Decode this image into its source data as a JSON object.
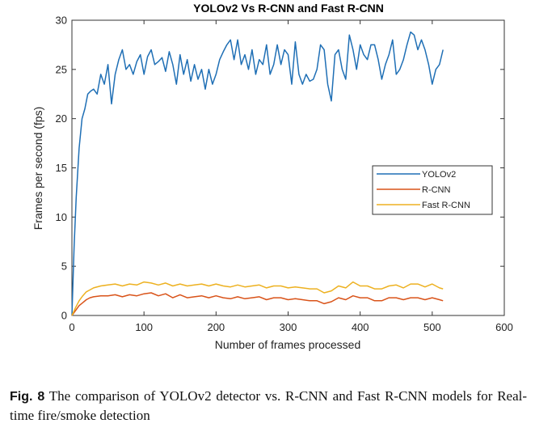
{
  "chart_data": {
    "type": "line",
    "title": "YOLOv2  Vs  R-CNN and Fast R-CNN",
    "xlabel": "Number of frames processed",
    "ylabel": "Frames per second (fps)",
    "xlim": [
      0,
      600
    ],
    "ylim": [
      0,
      30
    ],
    "xticks": [
      0,
      100,
      200,
      300,
      400,
      500,
      600
    ],
    "yticks": [
      0,
      5,
      10,
      15,
      20,
      25,
      30
    ],
    "grid": false,
    "legend_position": "center-right",
    "series": [
      {
        "name": "YOLOv2",
        "color": "#1f6fb5",
        "x": [
          0,
          3,
          6,
          10,
          14,
          18,
          22,
          26,
          30,
          35,
          40,
          45,
          50,
          55,
          60,
          65,
          70,
          75,
          80,
          85,
          90,
          95,
          100,
          105,
          110,
          115,
          120,
          125,
          130,
          135,
          140,
          145,
          150,
          155,
          160,
          165,
          170,
          175,
          180,
          185,
          190,
          195,
          200,
          205,
          210,
          215,
          220,
          225,
          230,
          235,
          240,
          245,
          250,
          255,
          260,
          265,
          270,
          275,
          280,
          285,
          290,
          295,
          300,
          305,
          310,
          315,
          320,
          325,
          330,
          335,
          340,
          345,
          350,
          355,
          360,
          365,
          370,
          375,
          380,
          385,
          390,
          395,
          400,
          405,
          410,
          415,
          420,
          425,
          430,
          435,
          440,
          445,
          450,
          455,
          460,
          465,
          470,
          475,
          480,
          485,
          490,
          495,
          500,
          505,
          510,
          515
        ],
        "values": [
          0,
          7,
          12,
          17,
          20,
          21,
          22.5,
          22.8,
          23,
          22.5,
          24.5,
          23.5,
          25.5,
          21.5,
          24.5,
          26,
          27,
          25,
          25.5,
          24.5,
          25.8,
          26.5,
          24.5,
          26.3,
          27,
          25.5,
          25.8,
          26.2,
          24.8,
          26.8,
          25.5,
          23.5,
          26.5,
          24.5,
          26,
          23.8,
          25.5,
          24,
          25,
          23,
          25,
          23.5,
          24.5,
          26,
          26.8,
          27.5,
          28,
          26,
          28,
          25.5,
          26.5,
          25,
          27,
          24.5,
          26,
          25.5,
          27.5,
          24.5,
          25.5,
          27.5,
          25.5,
          27,
          26.5,
          23.5,
          27.8,
          24.5,
          23.5,
          24.5,
          23.8,
          24,
          25,
          27.5,
          27,
          23.5,
          21.8,
          26.5,
          27,
          25,
          24,
          28.5,
          27,
          25,
          27.5,
          26.5,
          26,
          27.5,
          27.5,
          26,
          24,
          25.5,
          26.5,
          28,
          24.5,
          25,
          26,
          27.5,
          28.8,
          28.5,
          27,
          28,
          27,
          25.5,
          23.5,
          25,
          25.5,
          27
        ]
      },
      {
        "name": "R-CNN",
        "color": "#d95319",
        "x": [
          0,
          5,
          10,
          15,
          20,
          25,
          30,
          40,
          50,
          60,
          70,
          80,
          90,
          100,
          110,
          120,
          130,
          140,
          150,
          160,
          170,
          180,
          190,
          200,
          210,
          220,
          230,
          240,
          250,
          260,
          270,
          280,
          290,
          300,
          310,
          320,
          330,
          340,
          350,
          360,
          370,
          380,
          390,
          400,
          410,
          420,
          430,
          440,
          450,
          460,
          470,
          480,
          490,
          500,
          510,
          515
        ],
        "values": [
          0,
          0.5,
          1,
          1.3,
          1.6,
          1.8,
          1.9,
          2,
          2,
          2.1,
          1.9,
          2.1,
          2,
          2.2,
          2.3,
          2,
          2.2,
          1.8,
          2.1,
          1.8,
          1.9,
          2,
          1.8,
          2,
          1.8,
          1.7,
          1.9,
          1.7,
          1.8,
          1.9,
          1.6,
          1.8,
          1.8,
          1.6,
          1.7,
          1.6,
          1.5,
          1.5,
          1.2,
          1.4,
          1.8,
          1.6,
          2,
          1.8,
          1.8,
          1.5,
          1.5,
          1.8,
          1.8,
          1.6,
          1.8,
          1.8,
          1.6,
          1.8,
          1.6,
          1.5
        ]
      },
      {
        "name": "Fast R-CNN",
        "color": "#edb120",
        "x": [
          0,
          5,
          10,
          15,
          20,
          25,
          30,
          40,
          50,
          60,
          70,
          80,
          90,
          100,
          110,
          120,
          130,
          140,
          150,
          160,
          170,
          180,
          190,
          200,
          210,
          220,
          230,
          240,
          250,
          260,
          270,
          280,
          290,
          300,
          310,
          320,
          330,
          340,
          350,
          360,
          370,
          380,
          390,
          400,
          410,
          420,
          430,
          440,
          450,
          460,
          470,
          480,
          490,
          500,
          510,
          515
        ],
        "values": [
          0,
          0.8,
          1.5,
          2,
          2.4,
          2.6,
          2.8,
          3,
          3.1,
          3.2,
          3,
          3.2,
          3.1,
          3.4,
          3.3,
          3.1,
          3.3,
          3,
          3.2,
          3,
          3.1,
          3.2,
          3,
          3.2,
          3,
          2.9,
          3.1,
          2.9,
          3,
          3.1,
          2.8,
          3,
          3,
          2.8,
          2.9,
          2.8,
          2.7,
          2.7,
          2.3,
          2.5,
          3,
          2.8,
          3.4,
          3,
          3,
          2.7,
          2.7,
          3,
          3.1,
          2.8,
          3.2,
          3.2,
          2.9,
          3.2,
          2.8,
          2.7
        ]
      }
    ]
  },
  "caption": {
    "label": "Fig. 8",
    "text": "The comparison of YOLOv2 detector vs. R-CNN and Fast R-CNN models for Real-time fire/smoke detection"
  }
}
